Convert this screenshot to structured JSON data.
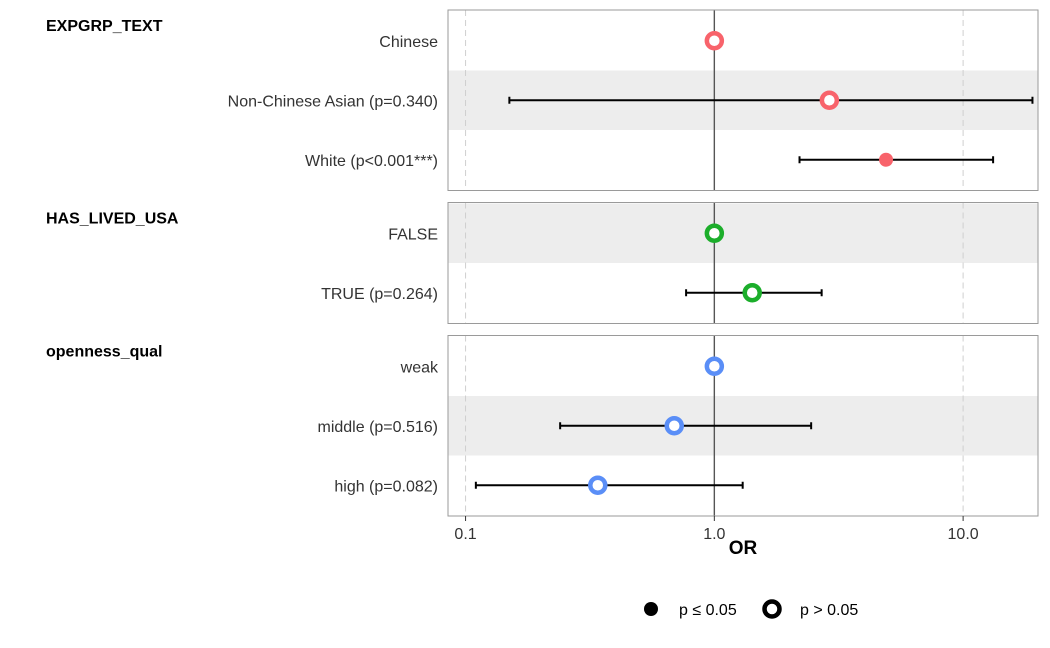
{
  "chart_data": {
    "type": "forest",
    "x_axis": {
      "title": "OR",
      "scale": "log10",
      "xlim": [
        0.085,
        20
      ],
      "ticks": [
        0.1,
        1.0,
        10.0
      ],
      "tick_labels": [
        "0.1",
        "1.0",
        "10.0"
      ],
      "reference_line": 1.0
    },
    "groups": [
      {
        "name": "EXPGRP_TEXT",
        "color": "#f8636b",
        "levels": [
          {
            "label": "Chinese",
            "or": 1.0,
            "ci": null,
            "significant": false
          },
          {
            "label": "Non-Chinese Asian (p=0.340)",
            "or": 2.9,
            "ci": [
              0.15,
              19.0
            ],
            "significant": false
          },
          {
            "label": "White (p<0.001***)",
            "or": 4.9,
            "ci": [
              2.2,
              13.2
            ],
            "significant": true
          }
        ]
      },
      {
        "name": "HAS_LIVED_USA",
        "color": "#1cae2b",
        "levels": [
          {
            "label": "FALSE",
            "or": 1.0,
            "ci": null,
            "significant": false
          },
          {
            "label": "TRUE (p=0.264)",
            "or": 1.42,
            "ci": [
              0.77,
              2.7
            ],
            "significant": false
          }
        ]
      },
      {
        "name": "openness_qual",
        "color": "#5a8ef7",
        "levels": [
          {
            "label": "weak",
            "or": 1.0,
            "ci": null,
            "significant": false
          },
          {
            "label": "middle (p=0.516)",
            "or": 0.69,
            "ci": [
              0.24,
              2.45
            ],
            "significant": false
          },
          {
            "label": "high (p=0.082)",
            "or": 0.34,
            "ci": [
              0.11,
              1.3
            ],
            "significant": false
          }
        ]
      }
    ],
    "legend": {
      "position": "bottom",
      "items": [
        {
          "label": "p ≤ 0.05",
          "shape": "filled"
        },
        {
          "label": "p > 0.05",
          "shape": "hollow"
        }
      ]
    },
    "grid": "vertical dashed at major ticks, alternating row shading"
  }
}
